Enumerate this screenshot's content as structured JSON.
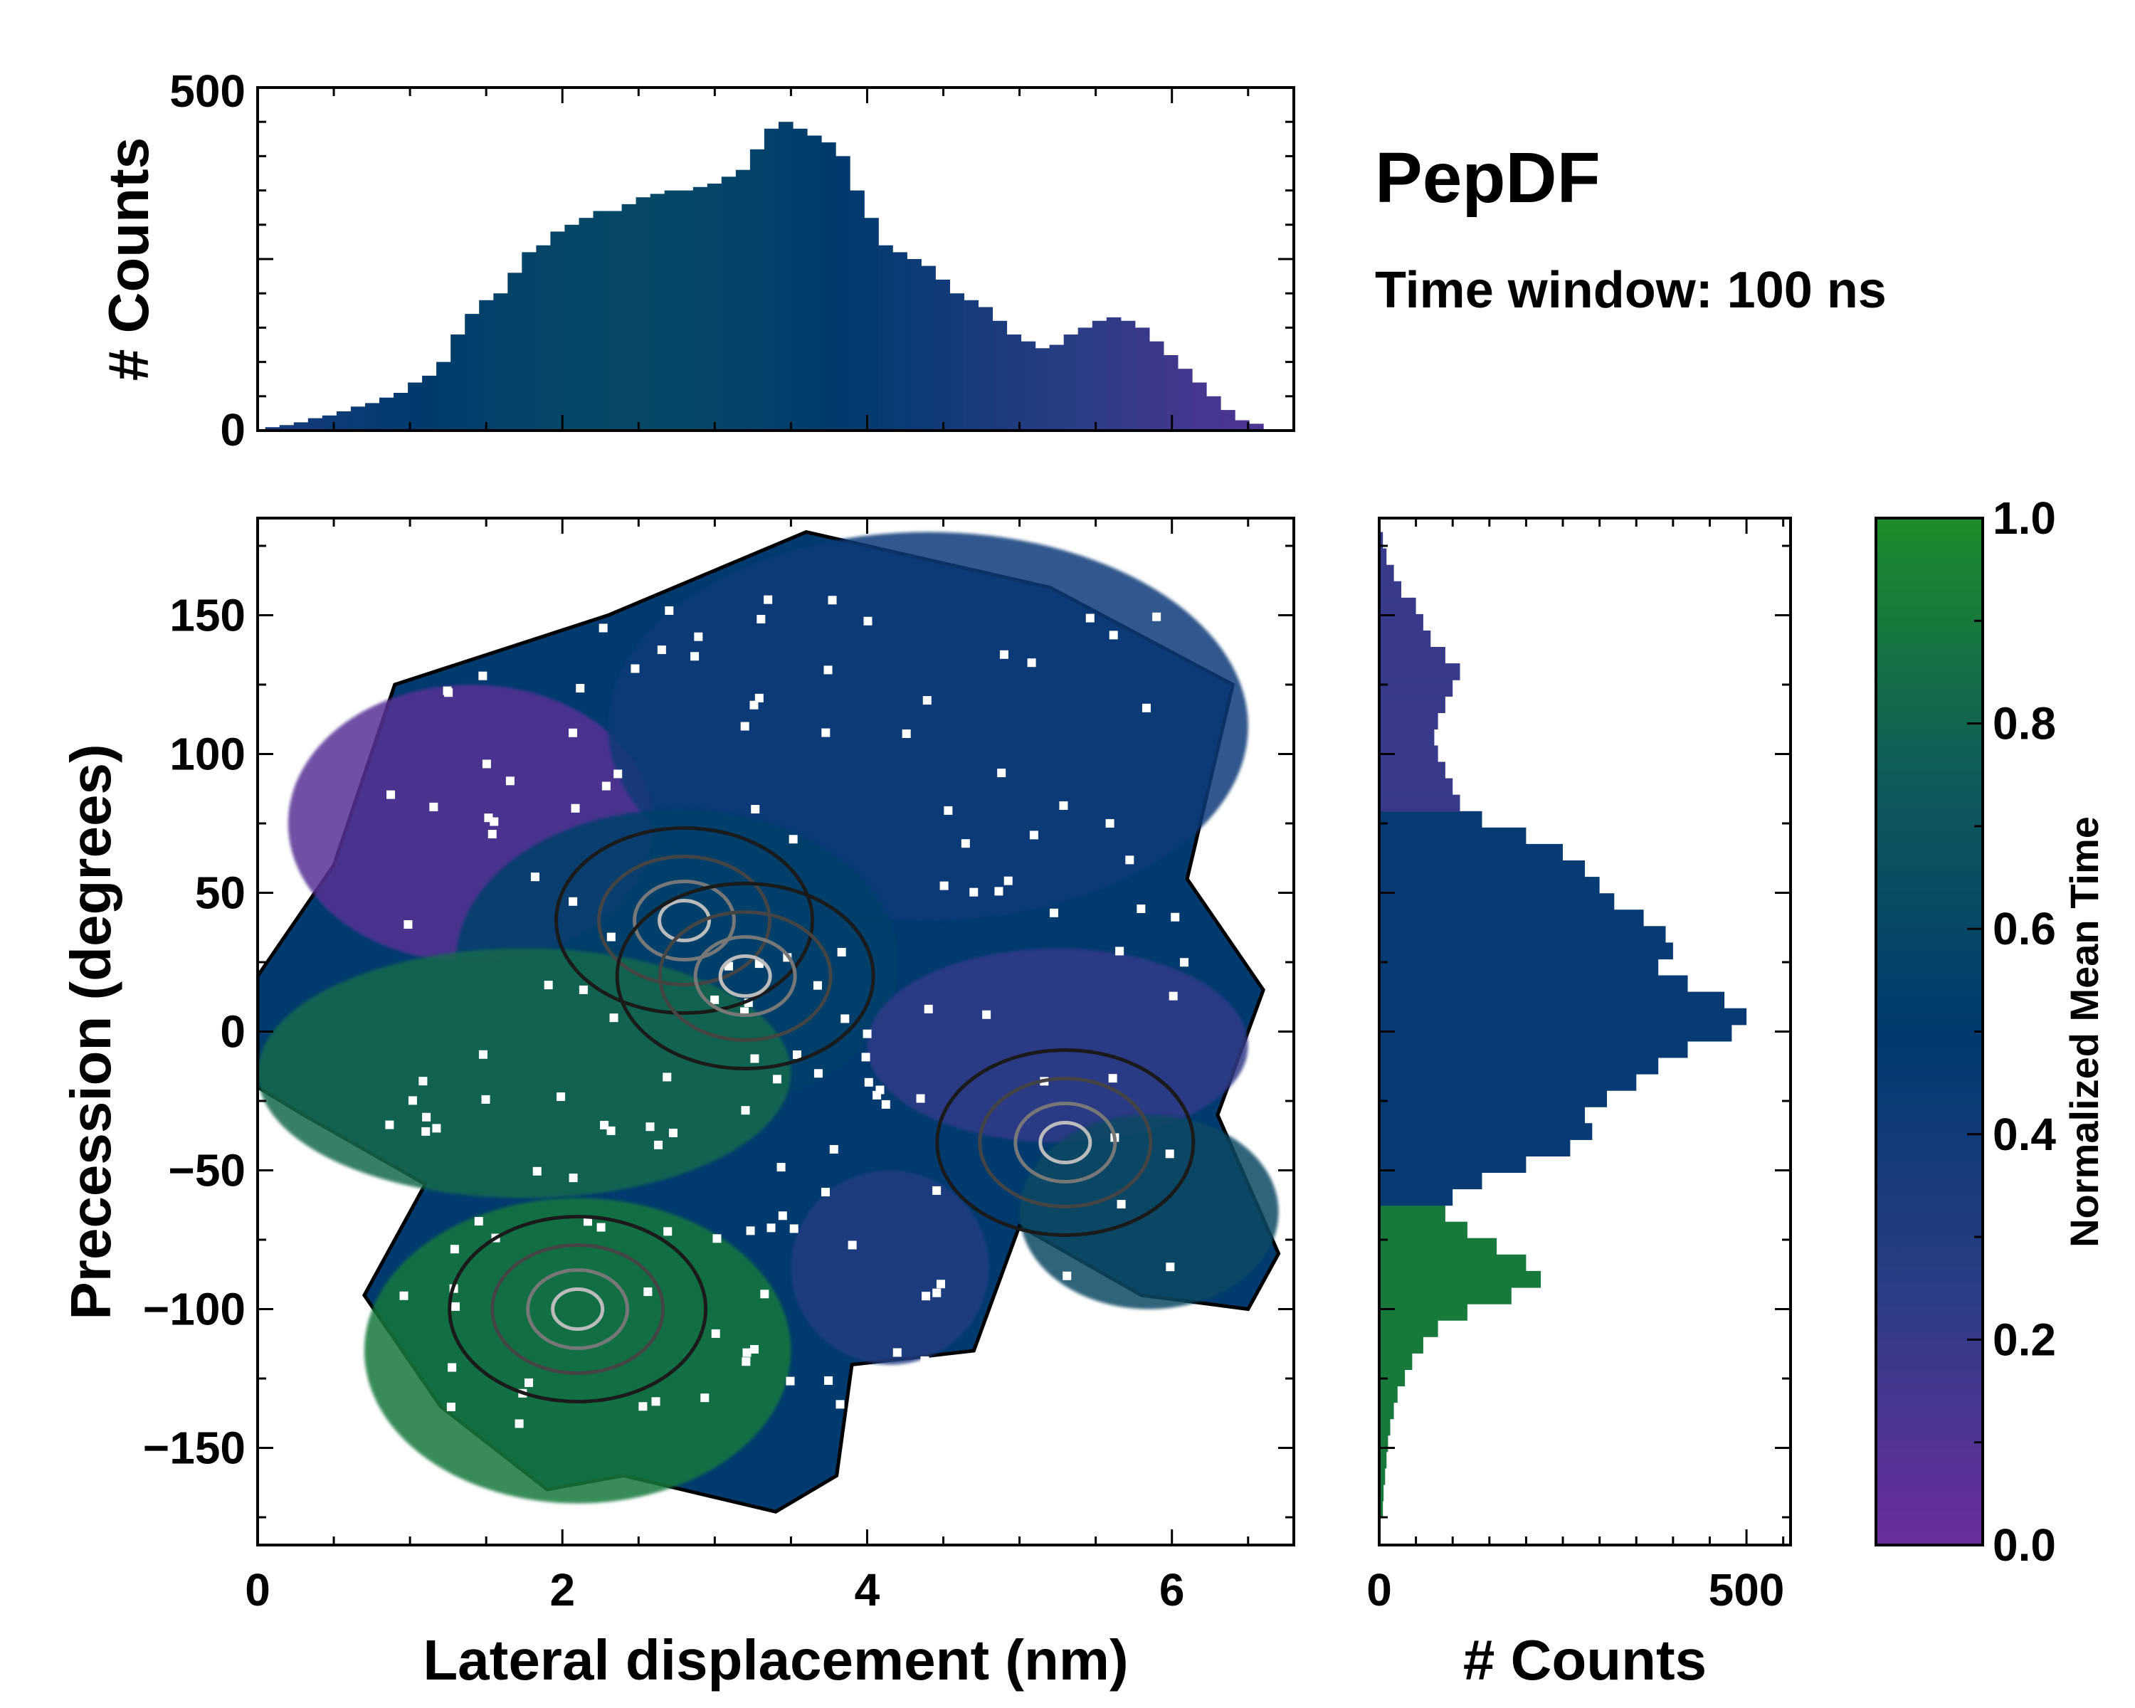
{
  "annotation": {
    "title": "PepDF",
    "subtitle": "Time window: 100 ns"
  },
  "chart_data": [
    {
      "id": "main",
      "type": "heatmap",
      "xlabel": "Lateral displacement (nm)",
      "ylabel": "Precession (degrees)",
      "xlim": [
        0,
        6.8
      ],
      "ylim": [
        -185,
        185
      ],
      "xticks": [
        "0",
        "2",
        "4",
        "6"
      ],
      "xtick_values": [
        0,
        2,
        4,
        6
      ],
      "yticks": [
        "150",
        "100",
        "50",
        "0",
        "−50",
        "−100",
        "−150"
      ],
      "ytick_values": [
        150,
        100,
        50,
        0,
        -50,
        -100,
        -150
      ],
      "color_value": "Normalized Mean Time",
      "regions": [
        {
          "name": "purple-upper-left",
          "x_range": [
            0.2,
            2.6
          ],
          "y_range": [
            25,
            125
          ],
          "mean_time": 0.08
        },
        {
          "name": "blue-upper-right",
          "x_range": [
            2.3,
            6.5
          ],
          "y_range": [
            40,
            180
          ],
          "mean_time": 0.4
        },
        {
          "name": "center-mixed",
          "x_range": [
            1.3,
            4.2
          ],
          "y_range": [
            -30,
            80
          ],
          "mean_time": 0.55
        },
        {
          "name": "green-left-middle",
          "x_range": [
            0,
            3.5
          ],
          "y_range": [
            -60,
            30
          ],
          "mean_time": 0.82
        },
        {
          "name": "violet-right-middle",
          "x_range": [
            4.0,
            6.5
          ],
          "y_range": [
            -40,
            30
          ],
          "mean_time": 0.22
        },
        {
          "name": "teal-right-lower",
          "x_range": [
            5.0,
            6.7
          ],
          "y_range": [
            -100,
            -30
          ],
          "mean_time": 0.62
        },
        {
          "name": "green-lower-left",
          "x_range": [
            0.7,
            3.5
          ],
          "y_range": [
            -170,
            -60
          ],
          "mean_time": 0.9
        },
        {
          "name": "blue-lower-middle",
          "x_range": [
            3.5,
            4.8
          ],
          "y_range": [
            -120,
            -50
          ],
          "mean_time": 0.3
        }
      ],
      "density_peaks": [
        {
          "x": 2.8,
          "y": 40
        },
        {
          "x": 3.2,
          "y": 20
        },
        {
          "x": 2.1,
          "y": -100
        },
        {
          "x": 5.3,
          "y": -40
        }
      ]
    },
    {
      "id": "top-marginal",
      "type": "bar",
      "xlabel": "",
      "ylabel": "# Counts",
      "yticks": [
        "500",
        "0"
      ],
      "ytick_values": [
        500,
        0
      ],
      "ylim": [
        0,
        500
      ],
      "bins_x_range": [
        0.05,
        6.6
      ],
      "values": [
        5,
        8,
        12,
        18,
        22,
        28,
        35,
        40,
        48,
        55,
        70,
        80,
        100,
        140,
        170,
        190,
        200,
        230,
        260,
        270,
        290,
        300,
        310,
        320,
        320,
        330,
        340,
        345,
        350,
        350,
        355,
        360,
        370,
        380,
        410,
        440,
        450,
        440,
        430,
        420,
        400,
        350,
        310,
        270,
        260,
        250,
        240,
        220,
        200,
        190,
        180,
        160,
        140,
        130,
        120,
        125,
        140,
        150,
        160,
        165,
        160,
        150,
        130,
        110,
        90,
        70,
        50,
        30,
        15,
        10
      ]
    },
    {
      "id": "right-marginal",
      "type": "bar",
      "orientation": "horizontal",
      "xlabel": "# Counts",
      "ylabel": "",
      "xticks": [
        "0",
        "500"
      ],
      "xtick_values": [
        0,
        500
      ],
      "xlim": [
        0,
        560
      ],
      "bins_y_range": [
        -175,
        180
      ],
      "values": [
        5,
        6,
        8,
        10,
        12,
        15,
        20,
        25,
        35,
        45,
        60,
        80,
        120,
        180,
        220,
        200,
        160,
        120,
        90,
        100,
        140,
        200,
        260,
        290,
        280,
        310,
        350,
        380,
        420,
        480,
        500,
        470,
        420,
        380,
        400,
        390,
        360,
        320,
        300,
        280,
        250,
        200,
        140,
        110,
        100,
        90,
        80,
        75,
        80,
        90,
        100,
        110,
        90,
        70,
        60,
        50,
        30,
        20,
        10,
        5
      ]
    },
    {
      "id": "colorbar",
      "type": "colorbar",
      "label": "Normalized Mean Time",
      "ticks": [
        "1.0",
        "0.8",
        "0.6",
        "0.4",
        "0.2",
        "0.0"
      ],
      "tick_values": [
        1.0,
        0.8,
        0.6,
        0.4,
        0.2,
        0.0
      ],
      "range": [
        0,
        1
      ],
      "colors": [
        "#6b2d9c",
        "#2a3d86",
        "#003a6e",
        "#0e5c5a",
        "#1e8c2a"
      ]
    }
  ]
}
